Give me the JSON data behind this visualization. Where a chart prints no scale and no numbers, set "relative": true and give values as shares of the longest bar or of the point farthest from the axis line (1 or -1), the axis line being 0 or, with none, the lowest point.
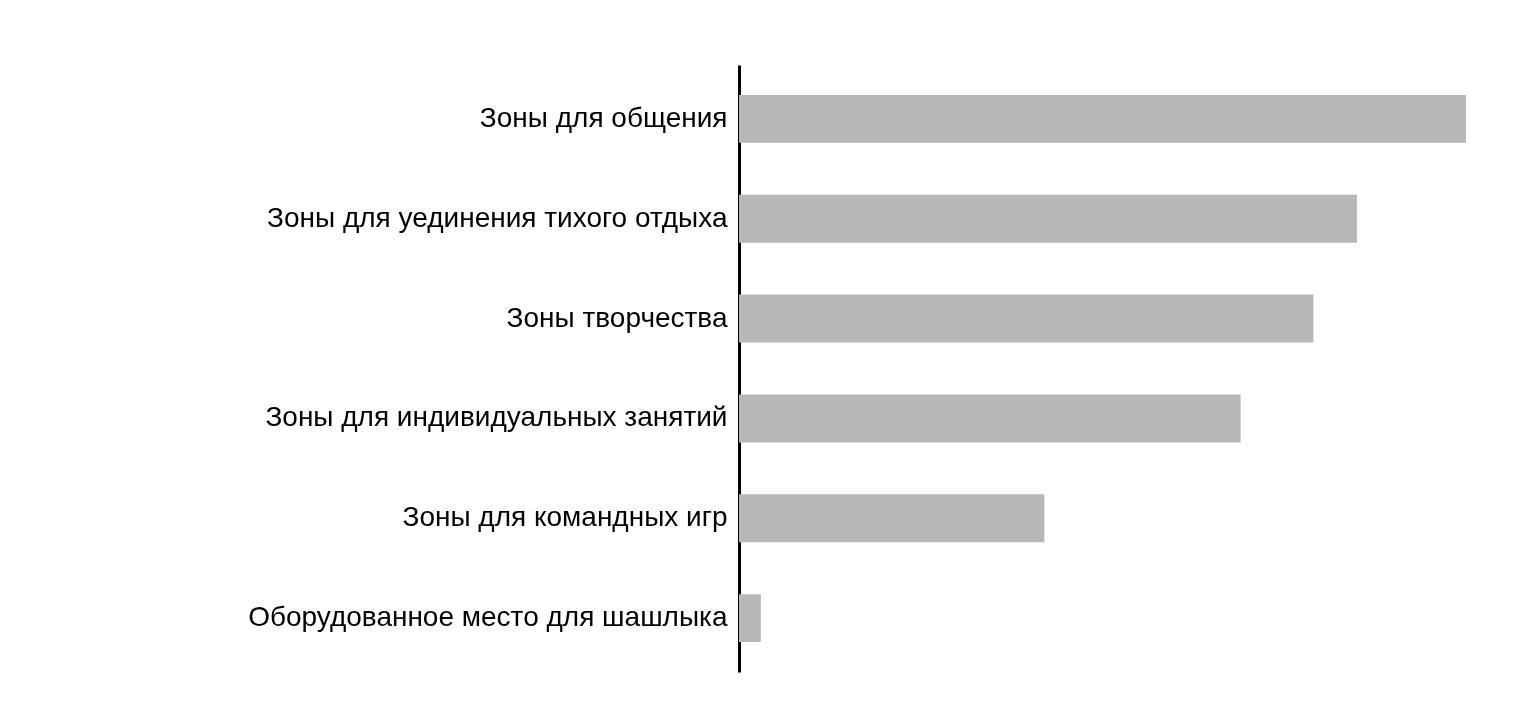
{
  "chart_data": {
    "type": "bar",
    "orientation": "horizontal",
    "relative": true,
    "categories": [
      "Зоны для общения",
      "Зоны для уединения тихого отдыха",
      "Зоны творчества",
      "Зоны для индивидуальных занятий",
      "Зоны для командных игр",
      "Оборудованное место для шашлыка"
    ],
    "values": [
      1,
      0.85,
      0.79,
      0.69,
      0.42,
      0.03
    ],
    "color": "#b7b7b7"
  }
}
